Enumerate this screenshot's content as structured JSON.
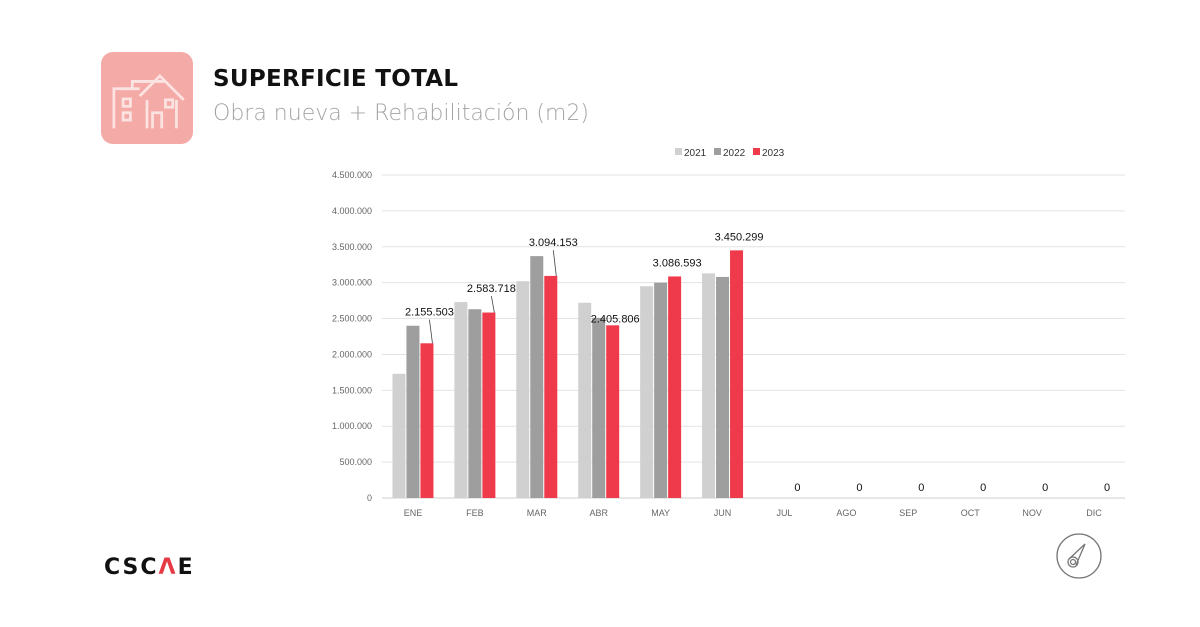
{
  "header": {
    "title": "SUPERFICIE TOTAL",
    "subtitle": "Obra nueva + Rehabilitación (m2)",
    "icon": "house-building-icon"
  },
  "footer": {
    "logo": "CSCAE",
    "logo_main": "CSC",
    "logo_accent": "Λ",
    "logo_end": "E",
    "corner_icon": "compass-gauge-icon"
  },
  "chart_data": {
    "type": "bar",
    "categories": [
      "ENE",
      "FEB",
      "MAR",
      "ABR",
      "MAY",
      "JUN",
      "JUL",
      "AGO",
      "SEP",
      "OCT",
      "NOV",
      "DIC"
    ],
    "series": [
      {
        "name": "2021",
        "color": "#d0d0d0",
        "values": [
          1730000,
          2730000,
          3020000,
          2720000,
          2950000,
          3130000,
          null,
          null,
          null,
          null,
          null,
          null
        ]
      },
      {
        "name": "2022",
        "color": "#9e9e9e",
        "values": [
          2400000,
          2630000,
          3370000,
          2510000,
          3000000,
          3080000,
          null,
          null,
          null,
          null,
          null,
          null
        ]
      },
      {
        "name": "2023",
        "color": "#ee3a4a",
        "values": [
          2155503,
          2583718,
          3094153,
          2405806,
          3086593,
          3450299,
          0,
          0,
          0,
          0,
          0,
          0
        ]
      }
    ],
    "data_labels": [
      "2.155.503",
      "2.583.718",
      "3.094.153",
      "2.405.806",
      "3.086.593",
      "3.450.299",
      "0",
      "0",
      "0",
      "0",
      "0",
      "0"
    ],
    "yticks": [
      "0",
      "500.000",
      "1.000.000",
      "1.500.000",
      "2.000.000",
      "2.500.000",
      "3.000.000",
      "3.500.000",
      "4.000.000",
      "4.500.000"
    ],
    "ylim": [
      0,
      4500000
    ],
    "grid": true,
    "legend": "top"
  }
}
